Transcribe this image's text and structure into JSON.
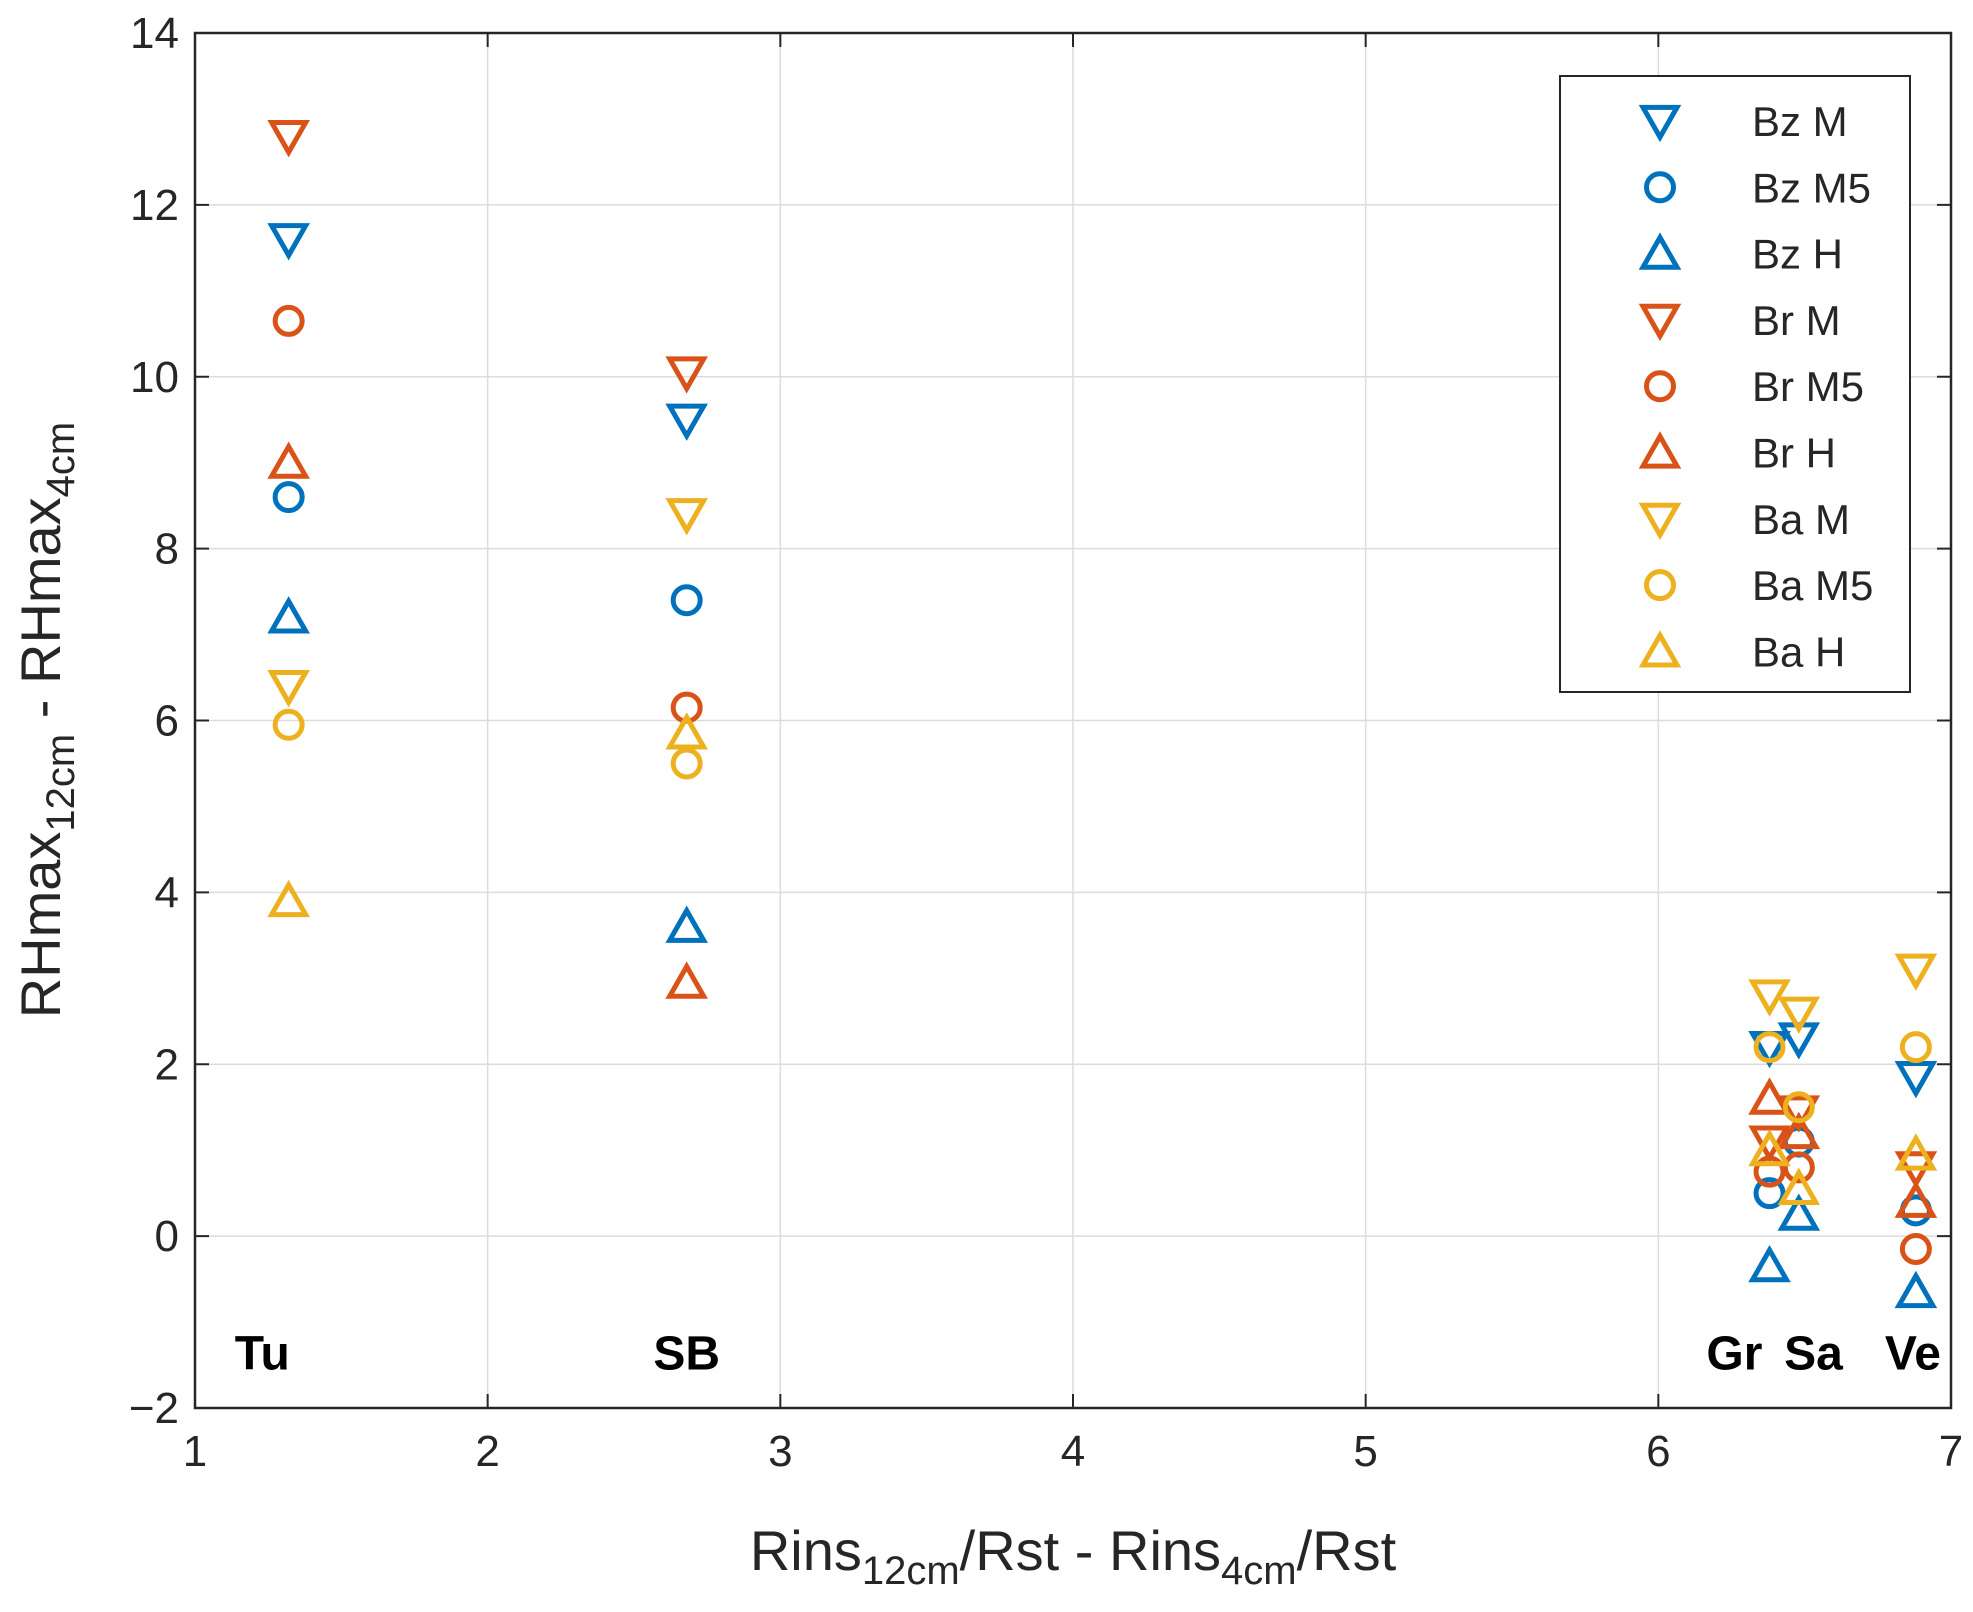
{
  "chart_data": {
    "type": "scatter",
    "title": "",
    "xlabel": {
      "parts": [
        "Rins",
        "12cm",
        "/Rst - Rins",
        "4cm",
        "/Rst"
      ]
    },
    "ylabel": {
      "parts": [
        "RHmax",
        "12cm",
        " - RHmax",
        "4cm"
      ]
    },
    "xlim": [
      1,
      7
    ],
    "ylim": [
      -2,
      14
    ],
    "xticks": [
      1,
      2,
      3,
      4,
      5,
      6,
      7
    ],
    "xtick_labels": [
      "1",
      "2",
      "3",
      "4",
      "5",
      "6",
      "7"
    ],
    "yticks": [
      -2,
      0,
      2,
      4,
      6,
      8,
      10,
      12,
      14
    ],
    "ytick_labels": [
      "−2",
      "0",
      "2",
      "4",
      "6",
      "8",
      "10",
      "12",
      "14"
    ],
    "grid": true,
    "legend_position": "top-right",
    "x": [
      1.32,
      2.68,
      6.38,
      6.48,
      6.88
    ],
    "annotations": [
      {
        "text": "Tu",
        "x": 1.23,
        "y": -1.55
      },
      {
        "text": "SB",
        "x": 2.68,
        "y": -1.55
      },
      {
        "text": "Gr",
        "x": 6.26,
        "y": -1.55
      },
      {
        "text": "Sa",
        "x": 6.53,
        "y": -1.55
      },
      {
        "text": "Ve",
        "x": 6.87,
        "y": -1.55
      }
    ],
    "series": [
      {
        "name": "Bz M",
        "marker": "triangle-down",
        "color": "#0072BD",
        "values": [
          11.6,
          9.5,
          2.2,
          2.3,
          1.85
        ]
      },
      {
        "name": "Bz M5",
        "marker": "circle",
        "color": "#0072BD",
        "values": [
          8.6,
          7.4,
          0.5,
          1.1,
          0.3
        ]
      },
      {
        "name": "Bz H",
        "marker": "triangle-up",
        "color": "#0072BD",
        "values": [
          7.2,
          3.6,
          -0.35,
          0.25,
          -0.65
        ]
      },
      {
        "name": "Br M",
        "marker": "triangle-down",
        "color": "#D95319",
        "values": [
          12.8,
          10.05,
          1.1,
          1.45,
          0.8
        ]
      },
      {
        "name": "Br M5",
        "marker": "circle",
        "color": "#D95319",
        "values": [
          10.65,
          6.15,
          0.75,
          0.8,
          -0.15
        ]
      },
      {
        "name": "Br H",
        "marker": "triangle-up",
        "color": "#D95319",
        "values": [
          9.0,
          2.95,
          1.6,
          1.2,
          0.4
        ]
      },
      {
        "name": "Ba M",
        "marker": "triangle-down",
        "color": "#EDB120",
        "values": [
          6.4,
          8.4,
          2.8,
          2.6,
          3.1
        ]
      },
      {
        "name": "Ba M5",
        "marker": "circle",
        "color": "#EDB120",
        "values": [
          5.95,
          5.5,
          2.2,
          1.5,
          2.2
        ]
      },
      {
        "name": "Ba H",
        "marker": "triangle-up",
        "color": "#EDB120",
        "values": [
          3.9,
          5.85,
          1.0,
          0.55,
          0.95
        ]
      }
    ]
  }
}
